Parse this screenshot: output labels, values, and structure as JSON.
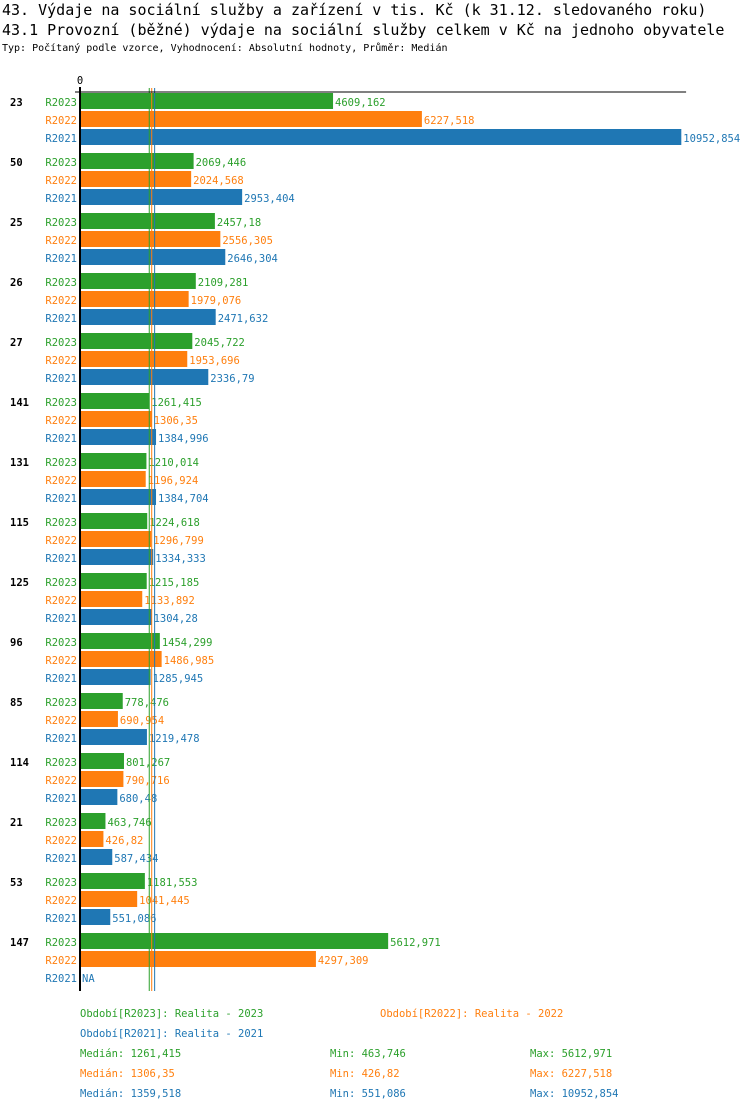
{
  "title": "43. Výdaje na sociální služby a zařízení v tis. Kč (k 31.12. sledovaného roku)",
  "subtitle": "43.1 Provozní (běžné) výdaje na sociální služby celkem v Kč na jednoho obyvatele",
  "meta": "Typ: Počítaný podle vzorce, Vyhodnocení: Absolutní hodnoty, Průměr: Medián",
  "chart_data": {
    "type": "bar",
    "orientation": "horizontal",
    "axis_zero_label": "0",
    "xlim": [
      0,
      11040
    ],
    "categories": [
      "23",
      "50",
      "25",
      "26",
      "27",
      "141",
      "131",
      "115",
      "125",
      "96",
      "85",
      "114",
      "21",
      "53",
      "147"
    ],
    "series": [
      {
        "name": "R2023",
        "color": "#2ca02c",
        "values": [
          4609.162,
          2069.446,
          2457.18,
          2109.281,
          2045.722,
          1261.415,
          1210.014,
          1224.618,
          1215.185,
          1454.299,
          778.476,
          801.267,
          463.746,
          1181.553,
          5612.971
        ],
        "labels": [
          "4609,162",
          "2069,446",
          "2457,18",
          "2109,281",
          "2045,722",
          "1261,415",
          "1210,014",
          "1224,618",
          "1215,185",
          "1454,299",
          "778,476",
          "801,267",
          "463,746",
          "1181,553",
          "5612,971"
        ]
      },
      {
        "name": "R2022",
        "color": "#ff7f0e",
        "values": [
          6227.518,
          2024.568,
          2556.305,
          1979.076,
          1953.696,
          1306.35,
          1196.924,
          1296.799,
          1133.892,
          1486.985,
          690.954,
          790.716,
          426.82,
          1041.445,
          4297.309
        ],
        "labels": [
          "6227,518",
          "2024,568",
          "2556,305",
          "1979,076",
          "1953,696",
          "1306,35",
          "1196,924",
          "1296,799",
          "1133,892",
          "1486,985",
          "690,954",
          "790,716",
          "426,82",
          "1041,445",
          "4297,309"
        ]
      },
      {
        "name": "R2021",
        "color": "#1f77b4",
        "values": [
          10952.854,
          2953.404,
          2646.304,
          2471.632,
          2336.79,
          1384.996,
          1384.704,
          1334.333,
          1304.28,
          1285.945,
          1219.478,
          680.48,
          587.434,
          551.086,
          null
        ],
        "labels": [
          "10952,854",
          "2953,404",
          "2646,304",
          "2471,632",
          "2336,79",
          "1384,996",
          "1384,704",
          "1334,333",
          "1304,28",
          "1285,945",
          "1219,478",
          "680,48",
          "587,434",
          "551,086",
          "NA"
        ]
      }
    ],
    "medians": [
      1261.415,
      1306.35,
      1359.518
    ]
  },
  "legend": {
    "r2023": "Období[R2023]: Realita - 2023",
    "r2022": "Období[R2022]: Realita - 2022",
    "r2021": "Období[R2021]: Realita - 2021"
  },
  "stats": [
    {
      "median": "Medián: 1261,415",
      "min": "Min: 463,746",
      "max": "Max: 5612,971",
      "color": "#2ca02c"
    },
    {
      "median": "Medián: 1306,35",
      "min": "Min: 426,82",
      "max": "Max: 6227,518",
      "color": "#ff7f0e"
    },
    {
      "median": "Medián: 1359,518",
      "min": "Min: 551,086",
      "max": "Max: 10952,854",
      "color": "#1f77b4"
    }
  ]
}
